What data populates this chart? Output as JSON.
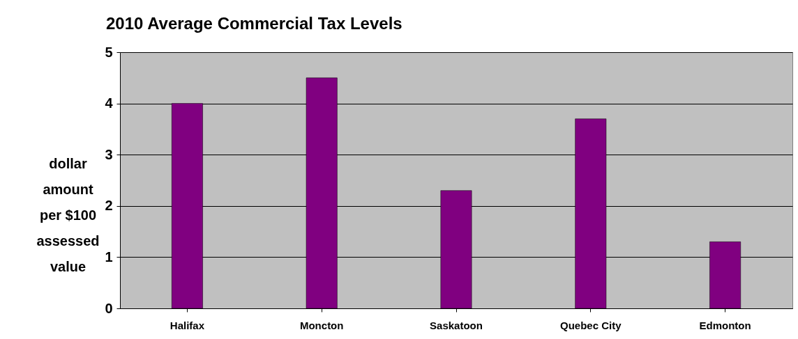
{
  "chart_data": {
    "type": "bar",
    "title": "2010 Average Commercial Tax Levels",
    "ylabel": "dollar amount per $100 assessed value",
    "categories": [
      "Halifax",
      "Moncton",
      "Saskatoon",
      "Quebec City",
      "Edmonton"
    ],
    "values": [
      4.0,
      4.5,
      2.3,
      3.7,
      1.3
    ],
    "color": "#800080",
    "ylim": [
      0,
      5
    ],
    "yticks": [
      0,
      1,
      2,
      3,
      4,
      5
    ],
    "grid": true
  }
}
